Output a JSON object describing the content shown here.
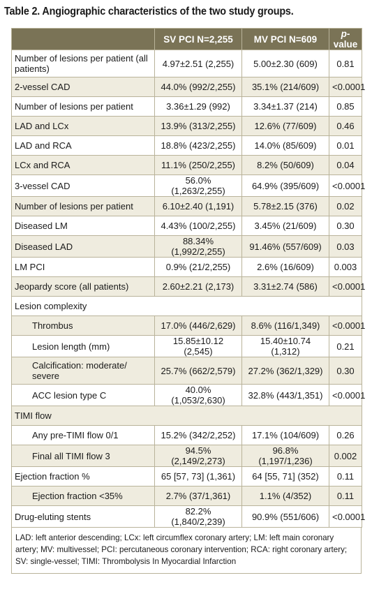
{
  "title": "Table 2. Angiographic characteristics of the two study groups.",
  "headers": {
    "col1": "",
    "col2": "SV PCI N=2,255",
    "col3": "MV PCI N=609",
    "col4_italic": "p",
    "col4_rest": "-value"
  },
  "rows": [
    {
      "label": "Number of lesions per patient (all patients)",
      "sv": "4.97±2.51 (2,255)",
      "mv": "5.00±2.30 (609)",
      "p": "0.81",
      "shade": false,
      "tall": true,
      "indent": false
    },
    {
      "label": "2-vessel CAD",
      "sv": "44.0% (992/2,255)",
      "mv": "35.1% (214/609)",
      "p": "<0.0001",
      "shade": true,
      "tall": false,
      "indent": false
    },
    {
      "label": "Number of lesions per patient",
      "sv": "3.36±1.29 (992)",
      "mv": "3.34±1.37 (214)",
      "p": "0.85",
      "shade": false,
      "tall": false,
      "indent": false
    },
    {
      "label": "LAD and LCx",
      "sv": "13.9% (313/2,255)",
      "mv": "12.6% (77/609)",
      "p": "0.46",
      "shade": true,
      "tall": false,
      "indent": false
    },
    {
      "label": "LAD and RCA",
      "sv": "18.8% (423/2,255)",
      "mv": "14.0% (85/609)",
      "p": "0.01",
      "shade": false,
      "tall": false,
      "indent": false
    },
    {
      "label": "LCx and RCA",
      "sv": "11.1% (250/2,255)",
      "mv": "8.2% (50/609)",
      "p": "0.04",
      "shade": true,
      "tall": false,
      "indent": false
    },
    {
      "label": "3-vessel CAD",
      "sv": "56.0% (1,263/2,255)",
      "mv": "64.9% (395/609)",
      "p": "<0.0001",
      "shade": false,
      "tall": false,
      "indent": false
    },
    {
      "label": "Number of lesions per patient",
      "sv": "6.10±2.40 (1,191)",
      "mv": "5.78±2.15 (376)",
      "p": "0.02",
      "shade": true,
      "tall": false,
      "indent": false
    },
    {
      "label": "Diseased LM",
      "sv": "4.43% (100/2,255)",
      "mv": "3.45% (21/609)",
      "p": "0.30",
      "shade": false,
      "tall": false,
      "indent": false
    },
    {
      "label": "Diseased LAD",
      "sv": "88.34% (1,992/2,255)",
      "mv": "91.46% (557/609)",
      "p": "0.03",
      "shade": true,
      "tall": false,
      "indent": false
    },
    {
      "label": "LM PCI",
      "sv": "0.9% (21/2,255)",
      "mv": "2.6% (16/609)",
      "p": "0.003",
      "shade": false,
      "tall": false,
      "indent": false
    },
    {
      "label": "Jeopardy score (all patients)",
      "sv": "2.60±2.21 (2,173)",
      "mv": "3.31±2.74 (586)",
      "p": "<0.0001",
      "shade": true,
      "tall": false,
      "indent": false
    },
    {
      "label": "Lesion complexity",
      "section": true,
      "shade": false
    },
    {
      "label": "Thrombus",
      "sv": "17.0% (446/2,629)",
      "mv": "8.6% (116/1,349)",
      "p": "<0.0001",
      "shade": true,
      "tall": false,
      "indent": true
    },
    {
      "label": "Lesion length (mm)",
      "sv": "15.85±10.12 (2,545)",
      "mv": "15.40±10.74 (1,312)",
      "p": "0.21",
      "shade": false,
      "tall": false,
      "indent": true
    },
    {
      "label": "Calcification: moderate/ severe",
      "sv": "25.7% (662/2,579)",
      "mv": "27.2% (362/1,329)",
      "p": "0.30",
      "shade": true,
      "tall": true,
      "indent": true
    },
    {
      "label": "ACC lesion type C",
      "sv": "40.0% (1,053/2,630)",
      "mv": "32.8% (443/1,351)",
      "p": "<0.0001",
      "shade": false,
      "tall": false,
      "indent": true
    },
    {
      "label": "TIMI flow",
      "section": true,
      "shade": true
    },
    {
      "label": "Any pre-TIMI flow 0/1",
      "sv": "15.2% (342/2,252)",
      "mv": "17.1% (104/609)",
      "p": "0.26",
      "shade": false,
      "tall": false,
      "indent": true
    },
    {
      "label": "Final all TIMI flow 3",
      "sv": "94.5% (2,149/2,273)",
      "mv": "96.8% (1,197/1,236)",
      "p": "0.002",
      "shade": true,
      "tall": false,
      "indent": true
    },
    {
      "label": "Ejection fraction %",
      "sv": "65 [57, 73] (1,361)",
      "mv": "64 [55, 71] (352)",
      "p": "0.11",
      "shade": false,
      "tall": false,
      "indent": false
    },
    {
      "label": "Ejection fraction <35%",
      "sv": "2.7% (37/1,361)",
      "mv": "1.1% (4/352)",
      "p": "0.11",
      "shade": true,
      "tall": false,
      "indent": true
    },
    {
      "label": "Drug-eluting stents",
      "sv": "82.2% (1,840/2,239)",
      "mv": "90.9% (551/606)",
      "p": "<0.0001",
      "shade": false,
      "tall": false,
      "indent": false
    }
  ],
  "footnote": "LAD: left anterior descending; LCx: left circumflex coronary artery; LM: left main coronary artery; MV: multivessel; PCI: percutaneous coronary intervention; RCA: right coronary artery; SV: single-vessel; TIMI: Thrombolysis In Myocardial Infarction",
  "colors": {
    "header_bg": "#7a7356",
    "shade_bg": "#efecdf",
    "border": "#b9b39a"
  }
}
